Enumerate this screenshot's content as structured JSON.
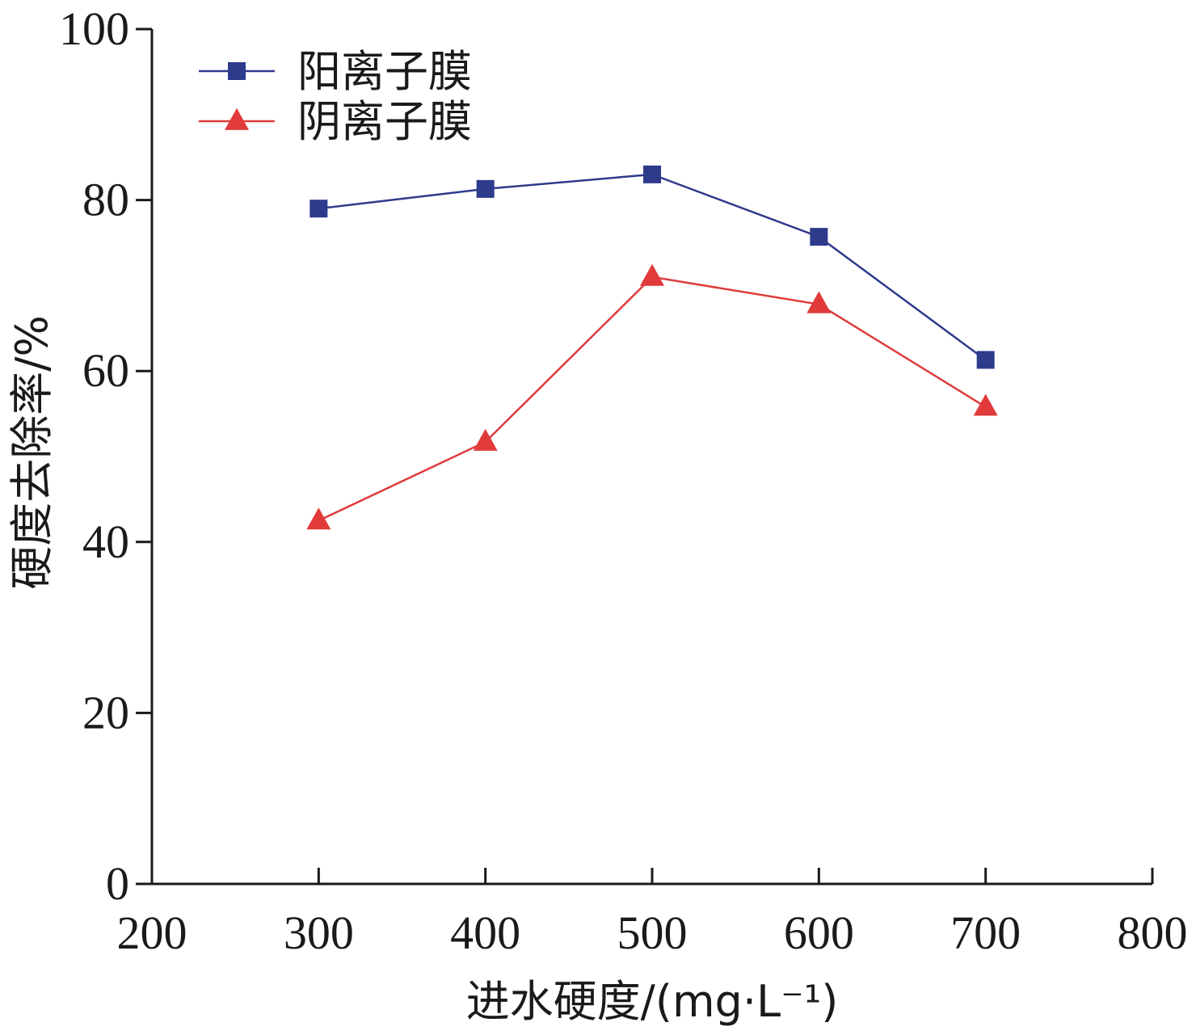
{
  "chart_data": {
    "type": "line",
    "x": [
      300,
      400,
      500,
      600,
      700
    ],
    "series": [
      {
        "name": "阳离子膜",
        "values": [
          79.0,
          81.3,
          83.0,
          75.7,
          61.3
        ],
        "color": "#2e3a8c",
        "marker": "square"
      },
      {
        "name": "阴离子膜",
        "values": [
          42.5,
          51.7,
          71.0,
          67.8,
          55.8
        ],
        "color": "#e03a3a",
        "marker": "triangle"
      }
    ],
    "xlabel": "进水硬度/(mg·L⁻¹)",
    "ylabel": "硬度去除率/%",
    "xlim": [
      200,
      800
    ],
    "ylim": [
      0,
      100
    ],
    "xticks": [
      200,
      300,
      400,
      500,
      600,
      700,
      800
    ],
    "yticks": [
      0,
      20,
      40,
      60,
      80,
      100
    ],
    "grid": false,
    "legend_position": "top-left"
  }
}
